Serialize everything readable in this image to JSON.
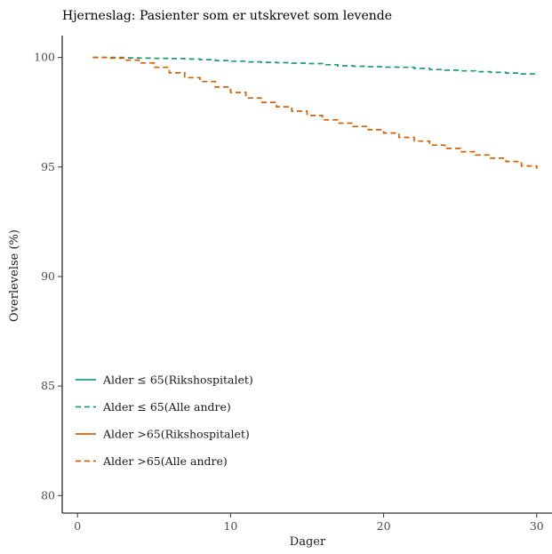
{
  "chart_data": {
    "type": "line",
    "title": "Hjerneslag: Pasienter som er utskrevet som levende",
    "xlabel": "Dager",
    "ylabel": "Overlevelse (%)",
    "xlim": [
      -1,
      31
    ],
    "ylim": [
      79.2,
      101
    ],
    "xticks": [
      0,
      10,
      20,
      30
    ],
    "yticks": [
      80,
      85,
      90,
      95,
      100
    ],
    "grid": false,
    "legend": "bottom-left",
    "series": [
      {
        "name": "Alder ≤ 65(Rikshospitalet)",
        "color": "#1b9e77",
        "dash": "solid",
        "x": [],
        "y": []
      },
      {
        "name": "Alder ≤ 65(Alle andre)",
        "color": "#1b9e77",
        "dash": "dashed",
        "x": [
          1,
          2,
          3,
          4,
          5,
          6,
          7,
          8,
          9,
          10,
          11,
          12,
          13,
          14,
          15,
          16,
          17,
          18,
          19,
          20,
          21,
          22,
          23,
          24,
          25,
          26,
          27,
          28,
          29,
          30
        ],
        "y": [
          100,
          100,
          99.98,
          99.97,
          99.96,
          99.95,
          99.93,
          99.9,
          99.86,
          99.83,
          99.8,
          99.78,
          99.76,
          99.74,
          99.72,
          99.67,
          99.62,
          99.6,
          99.58,
          99.56,
          99.55,
          99.5,
          99.45,
          99.42,
          99.39,
          99.35,
          99.32,
          99.29,
          99.25,
          99.23
        ]
      },
      {
        "name": "Alder >65(Rikshospitalet)",
        "color": "#d95f02",
        "dash": "solid",
        "x": [],
        "y": []
      },
      {
        "name": "Alder >65(Alle andre)",
        "color": "#d95f02",
        "dash": "dashed",
        "x": [
          1,
          2,
          3,
          4,
          5,
          6,
          7,
          8,
          9,
          10,
          11,
          12,
          13,
          14,
          15,
          16,
          17,
          18,
          19,
          20,
          21,
          22,
          23,
          24,
          25,
          26,
          27,
          28,
          29,
          30
        ],
        "y": [
          100,
          99.97,
          99.88,
          99.75,
          99.55,
          99.3,
          99.08,
          98.9,
          98.65,
          98.4,
          98.15,
          97.95,
          97.75,
          97.55,
          97.35,
          97.15,
          97.0,
          96.85,
          96.7,
          96.55,
          96.35,
          96.18,
          96.0,
          95.85,
          95.7,
          95.55,
          95.4,
          95.25,
          95.05,
          94.92
        ]
      }
    ]
  }
}
